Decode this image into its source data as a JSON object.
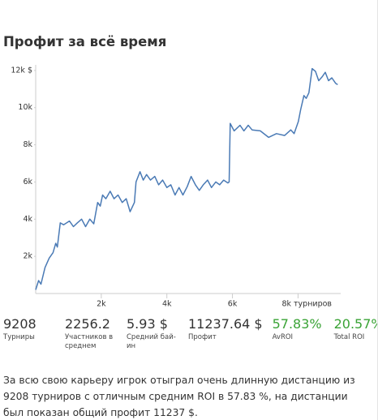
{
  "header": {
    "title": "Профит за всё время"
  },
  "chart_data": {
    "type": "line",
    "x": [
      0,
      90,
      160,
      285,
      410,
      530,
      610,
      660,
      750,
      850,
      1030,
      1150,
      1270,
      1400,
      1520,
      1650,
      1770,
      1890,
      1970,
      2040,
      2140,
      2270,
      2390,
      2510,
      2640,
      2760,
      2880,
      3010,
      3060,
      3180,
      3280,
      3380,
      3500,
      3630,
      3750,
      3870,
      4000,
      4120,
      4250,
      4370,
      4490,
      4620,
      4740,
      4870,
      4990,
      5110,
      5240,
      5360,
      5490,
      5610,
      5730,
      5860,
      5900,
      5930,
      6050,
      6230,
      6350,
      6480,
      6600,
      6850,
      7100,
      7340,
      7590,
      7780,
      7880,
      8010,
      8080,
      8180,
      8250,
      8330,
      8380,
      8430,
      8530,
      8630,
      8730,
      8830,
      8930,
      9030,
      9150,
      9208
    ],
    "series": [
      {
        "name": "Профит",
        "color": "#4a7ab5",
        "values": [
          200,
          700,
          500,
          1400,
          1900,
          2200,
          2700,
          2500,
          3800,
          3700,
          3900,
          3600,
          3800,
          4000,
          3600,
          4000,
          3750,
          4900,
          4700,
          5300,
          5100,
          5500,
          5100,
          5300,
          4900,
          5100,
          4400,
          4900,
          6000,
          6550,
          6100,
          6400,
          6100,
          6300,
          5850,
          6100,
          5700,
          5850,
          5300,
          5700,
          5300,
          5750,
          6300,
          5850,
          5550,
          5850,
          6100,
          5700,
          6000,
          5850,
          6100,
          5950,
          6000,
          9150,
          8750,
          9050,
          8750,
          9050,
          8800,
          8750,
          8400,
          8600,
          8500,
          8800,
          8600,
          9250,
          9900,
          10650,
          10500,
          10800,
          11450,
          12100,
          11950,
          11450,
          11650,
          11900,
          11450,
          11600,
          11300,
          11237
        ]
      }
    ],
    "xlim": [
      0,
      9300
    ],
    "ylim": [
      0,
      12300
    ],
    "xticks": [
      {
        "value": 2000,
        "label": "2k"
      },
      {
        "value": 4000,
        "label": "4k"
      },
      {
        "value": 6000,
        "label": "6k"
      },
      {
        "value": 8000,
        "label": "8k турниров"
      }
    ],
    "yticks": [
      {
        "value": 2000,
        "label": "2k"
      },
      {
        "value": 4000,
        "label": "4k"
      },
      {
        "value": 6000,
        "label": "6k"
      },
      {
        "value": 8000,
        "label": "8k"
      },
      {
        "value": 10000,
        "label": "10k"
      },
      {
        "value": 12000,
        "label": "12k $"
      }
    ]
  },
  "stats": [
    {
      "value": "9208",
      "label": "Турниры"
    },
    {
      "value": "2256.2",
      "label": "Участников в среднем"
    },
    {
      "value": "5.93 $",
      "label": "Средний бай-ин"
    },
    {
      "value": "11237.64 $",
      "label": "Профит"
    },
    {
      "value": "57.83%",
      "label": "AvROI"
    },
    {
      "value": "20.57%",
      "label": "Total ROI"
    }
  ],
  "description": "За всю свою карьеру игрок отыграл очень длинную дистанцию из 9208 турниров с отличным средним ROI в 57.83 %, на дистанции был показан общий профит 11237 $."
}
